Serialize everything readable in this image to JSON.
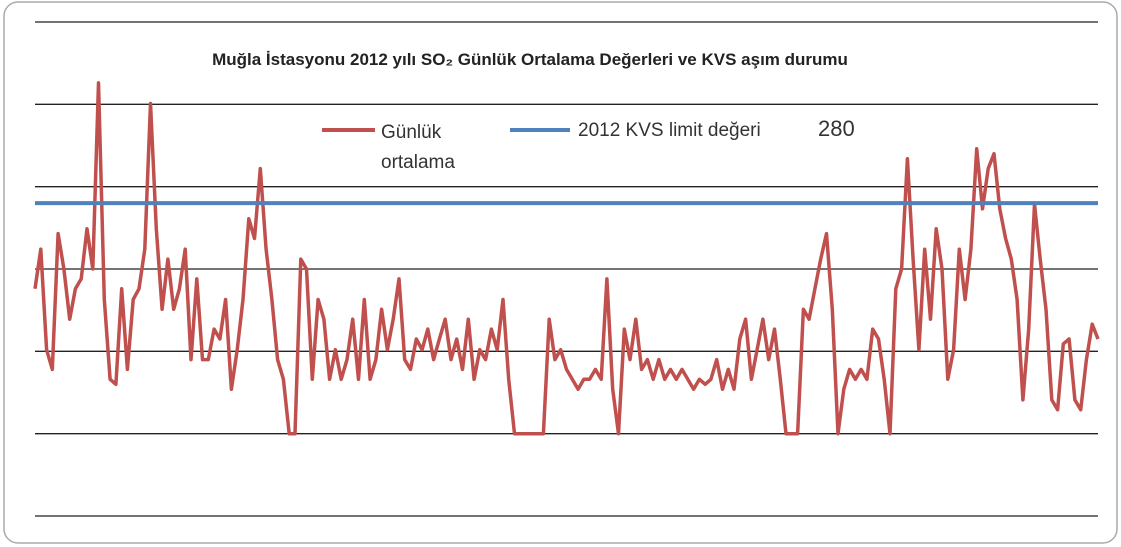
{
  "chart_data": {
    "type": "line",
    "title": "Muğla İstasyonu 2012 yılı SO₂ Günlük Ortalama Değerleri ve KVS aşım durumu",
    "ylim": [
      -100,
      500
    ],
    "yticks": [
      -100,
      0,
      100,
      200,
      300,
      400,
      500
    ],
    "grid": true,
    "series": [
      {
        "name": "Günlük ortalama",
        "color": "#c0504d",
        "values": [
          176,
          224,
          102,
          78,
          243,
          200,
          139,
          176,
          188,
          249,
          200,
          426,
          163,
          66,
          60,
          176,
          78,
          163,
          176,
          224,
          401,
          249,
          151,
          212,
          151,
          176,
          224,
          90,
          188,
          90,
          90,
          127,
          115,
          163,
          54,
          102,
          163,
          261,
          237,
          322,
          224,
          163,
          90,
          66,
          0,
          0,
          212,
          200,
          66,
          163,
          139,
          66,
          102,
          66,
          90,
          139,
          66,
          163,
          66,
          90,
          151,
          102,
          139,
          188,
          90,
          78,
          115,
          102,
          127,
          90,
          115,
          139,
          90,
          115,
          78,
          139,
          66,
          102,
          90,
          127,
          102,
          163,
          66,
          0,
          0,
          0,
          0,
          0,
          0,
          139,
          90,
          102,
          78,
          66,
          54,
          66,
          66,
          78,
          66,
          188,
          54,
          0,
          127,
          90,
          139,
          78,
          90,
          66,
          90,
          66,
          78,
          66,
          78,
          66,
          54,
          66,
          60,
          66,
          90,
          54,
          78,
          54,
          115,
          139,
          66,
          102,
          139,
          90,
          127,
          66,
          0,
          0,
          0,
          151,
          139,
          176,
          212,
          243,
          151,
          0,
          54,
          78,
          66,
          78,
          66,
          127,
          115,
          66,
          0,
          176,
          200,
          334,
          212,
          102,
          224,
          139,
          249,
          200,
          66,
          102,
          224,
          163,
          224,
          346,
          273,
          322,
          340,
          273,
          237,
          212,
          163,
          41,
          127,
          279,
          212,
          151,
          41,
          29,
          109,
          115,
          41,
          29,
          90,
          133,
          115
        ]
      },
      {
        "name": "2012 KVS limit değeri",
        "color": "#4f81bd",
        "value": 280
      }
    ]
  }
}
